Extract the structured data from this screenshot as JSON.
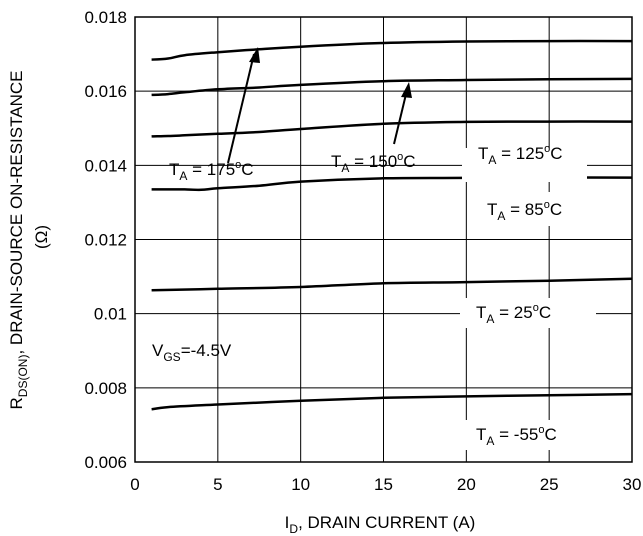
{
  "chart_data": {
    "type": "line",
    "title": "",
    "xlabel": "I",
    "xlabel_sub": "D",
    "xlabel_rest": ", DRAIN CURRENT (A)",
    "ylabel_main_pre": "R",
    "ylabel_main_sub": "DS(ON)",
    "ylabel_main_rest": ",  DRAIN-SOURCE ON-RESISTANCE",
    "ylabel_unit": "(Ω)",
    "xlim": [
      0,
      30
    ],
    "ylim": [
      0.006,
      0.018
    ],
    "xticks": [
      "0",
      "5",
      "10",
      "15",
      "20",
      "25",
      "30"
    ],
    "yticks": [
      "0.006",
      "0.008",
      "0.01",
      "0.012",
      "0.014",
      "0.016",
      "0.018"
    ],
    "grid": true,
    "series": [
      {
        "name": "TA = 175oC",
        "x": [
          1,
          2,
          3,
          5,
          7.5,
          10,
          15,
          20,
          25,
          30
        ],
        "y": [
          0.01685,
          0.01688,
          0.01697,
          0.01705,
          0.01713,
          0.0172,
          0.0173,
          0.01734,
          0.01735,
          0.01735
        ]
      },
      {
        "name": "TA = 150oC",
        "x": [
          1,
          2,
          3,
          5,
          7.5,
          10,
          15,
          20,
          25,
          30
        ],
        "y": [
          0.0159,
          0.01592,
          0.01597,
          0.01605,
          0.0161,
          0.01617,
          0.01627,
          0.0163,
          0.01632,
          0.01633
        ]
      },
      {
        "name": "TA = 125oC",
        "x": [
          1,
          2,
          3,
          5,
          7.5,
          10,
          15,
          20,
          25,
          30
        ],
        "y": [
          0.01478,
          0.01479,
          0.01481,
          0.01485,
          0.0149,
          0.01498,
          0.01512,
          0.01517,
          0.01518,
          0.01518
        ]
      },
      {
        "name": "TA = 85oC",
        "x": [
          1,
          2,
          3,
          4,
          5,
          7.5,
          10,
          15,
          20,
          25,
          30
        ],
        "y": [
          0.01335,
          0.01335,
          0.01335,
          0.01334,
          0.01338,
          0.01345,
          0.01356,
          0.01365,
          0.01366,
          0.01367,
          0.01367
        ]
      },
      {
        "name": "TA = 25oC",
        "x": [
          1,
          5,
          10,
          15,
          20,
          25,
          30
        ],
        "y": [
          0.01063,
          0.01067,
          0.01072,
          0.01082,
          0.01085,
          0.01089,
          0.01094
        ]
      },
      {
        "name": "TA = -55oC",
        "x": [
          1,
          2,
          5,
          10,
          15,
          20,
          25,
          30
        ],
        "y": [
          0.00742,
          0.00748,
          0.00755,
          0.00765,
          0.00773,
          0.00777,
          0.0078,
          0.00783
        ]
      }
    ],
    "annotations": {
      "t175": {
        "pre": "T",
        "sub": "A",
        "mid": " = 175",
        "sup": "o",
        "post": "C"
      },
      "t150": {
        "pre": "T",
        "sub": "A",
        "mid": " = 150",
        "sup": "o",
        "post": "C"
      },
      "t125": {
        "pre": "T",
        "sub": "A",
        "mid": " = 125",
        "sup": "o",
        "post": "C"
      },
      "t85": {
        "pre": "T",
        "sub": "A",
        "mid": " = 85",
        "sup": "o",
        "post": "C"
      },
      "t25": {
        "pre": "T",
        "sub": "A",
        "mid": " = 25",
        "sup": "o",
        "post": "C"
      },
      "tm55": {
        "pre": "T",
        "sub": "A",
        "mid": " = -55",
        "sup": "o",
        "post": "C"
      },
      "vgs": {
        "pre": "V",
        "sub": "GS",
        "post": "=-4.5V"
      }
    },
    "line_color": "#000000"
  }
}
